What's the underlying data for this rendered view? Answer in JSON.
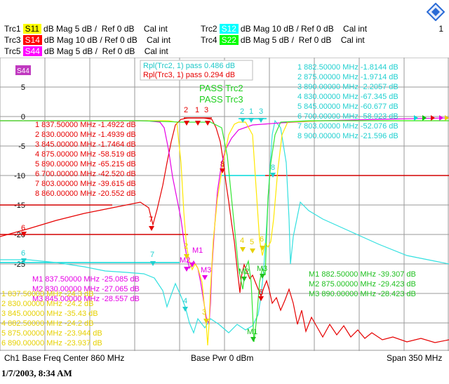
{
  "header": {
    "page_number": "1",
    "traces": [
      {
        "label": "Trc1",
        "param": "S11",
        "format": "dB Mag",
        "scale": "5 dB /",
        "ref": "Ref 0 dB",
        "cal": "Cal int",
        "color": "#ffff00",
        "text_color": "#000000"
      },
      {
        "label": "Trc3",
        "param": "S14",
        "format": "dB Mag",
        "scale": "10 dB /",
        "ref": "Ref 0 dB",
        "cal": "Cal int",
        "color": "#ff0000",
        "text_color": "#ffffff"
      },
      {
        "label": "Trc5",
        "param": "S44",
        "format": "dB Mag",
        "scale": "5 dB /",
        "ref": "Ref 0 dB",
        "cal": "Cal int",
        "color": "#ff00ff",
        "text_color": "#ffffff"
      },
      {
        "label": "Trc2",
        "param": "S12",
        "format": "dB Mag",
        "scale": "10 dB /",
        "ref": "Ref 0 dB",
        "cal": "Cal int",
        "color": "#00ffff",
        "text_color": "#ffffff"
      },
      {
        "label": "Trc4",
        "param": "S22",
        "format": "dB Mag",
        "scale": "5 dB /",
        "ref": "Ref 0 dB",
        "cal": "Cal int",
        "color": "#00ff00",
        "text_color": "#ffffff"
      }
    ]
  },
  "plot": {
    "active_trace": "S44",
    "yaxis": {
      "ticks": [
        "5",
        "0",
        "-5",
        "-10",
        "-15",
        "-20",
        "-25"
      ]
    },
    "ripple_cyan": "Rpl(Trc2, 1)  pass 0.486  dB",
    "ripple_red": "Rpl(Trc3, 1)  pass 0.294  dB",
    "pass_labels": [
      "PASS Trc2",
      "PASS Trc3"
    ],
    "red_markers": [
      "1 837.50000 MHz -1.4922 dB",
      "2 830.00000 MHz -1.4939 dB",
      "3 845.00000 MHz -1.7464 dB",
      "4 875.00000 MHz -58.519 dB",
      "5 890.00000 MHz -65.215 dB",
      "6 700.00000 MHz -42.520 dB",
      "7 803.00000 MHz -39.615 dB",
      "8 860.00000 MHz -20.552 dB"
    ],
    "cyan_markers": [
      "1 882.50000 MHz -1.8144 dB",
      "2 875.00000 MHz -1.9714 dB",
      "3 890.00000 MHz -2.2057 dB",
      "4 830.00000 MHz -67.345 dB",
      "5 845.00000 MHz -60.677 dB",
      "6 700.00000 MHz -58.923 dB",
      "7 803.00000 MHz -52.076 dB",
      "8 900.00000 MHz -21.596 dB"
    ],
    "magenta_markers": [
      "M1 837.50000 MHz -25.085 dB",
      "M2 830.00000 MHz -27.065 dB",
      "M3 845.00000 MHz -28.557 dB"
    ],
    "yellow_markers": [
      "1 837.50000 MHz -24.3 dB",
      "2 830.00000 MHz -24.2 dB",
      "3 845.00000 MHz -35.43 dB",
      "4 882.50000 MHz -24.2 dB",
      "5 875.00000 MHz -23.944 dB",
      "6 890.00000 MHz -23.937 dB"
    ],
    "green_markers": [
      "M1 882.50000 MHz -39.307 dB",
      "M2 875.00000 MHz -29.423 dB",
      "M3 890.00000 MHz -28.423 dB"
    ],
    "point_labels": {
      "red": [
        "2",
        "1",
        "3",
        "8",
        "6",
        "7",
        "5"
      ],
      "cyan": [
        "2",
        "1",
        "3",
        "8",
        "6",
        "7",
        "4"
      ],
      "magenta": [
        "M1",
        "M2",
        "M3"
      ],
      "yellow": [
        "2",
        "3",
        "4",
        "5",
        "6"
      ],
      "green": [
        "M1",
        "M2",
        "M3"
      ]
    }
  },
  "footer": {
    "channel": "Ch1  Base Freq  Center  860 MHz",
    "power": "Base Pwr   0 dBm",
    "span": "Span  350 MHz",
    "timestamp": "1/7/2003, 8:34 AM"
  }
}
